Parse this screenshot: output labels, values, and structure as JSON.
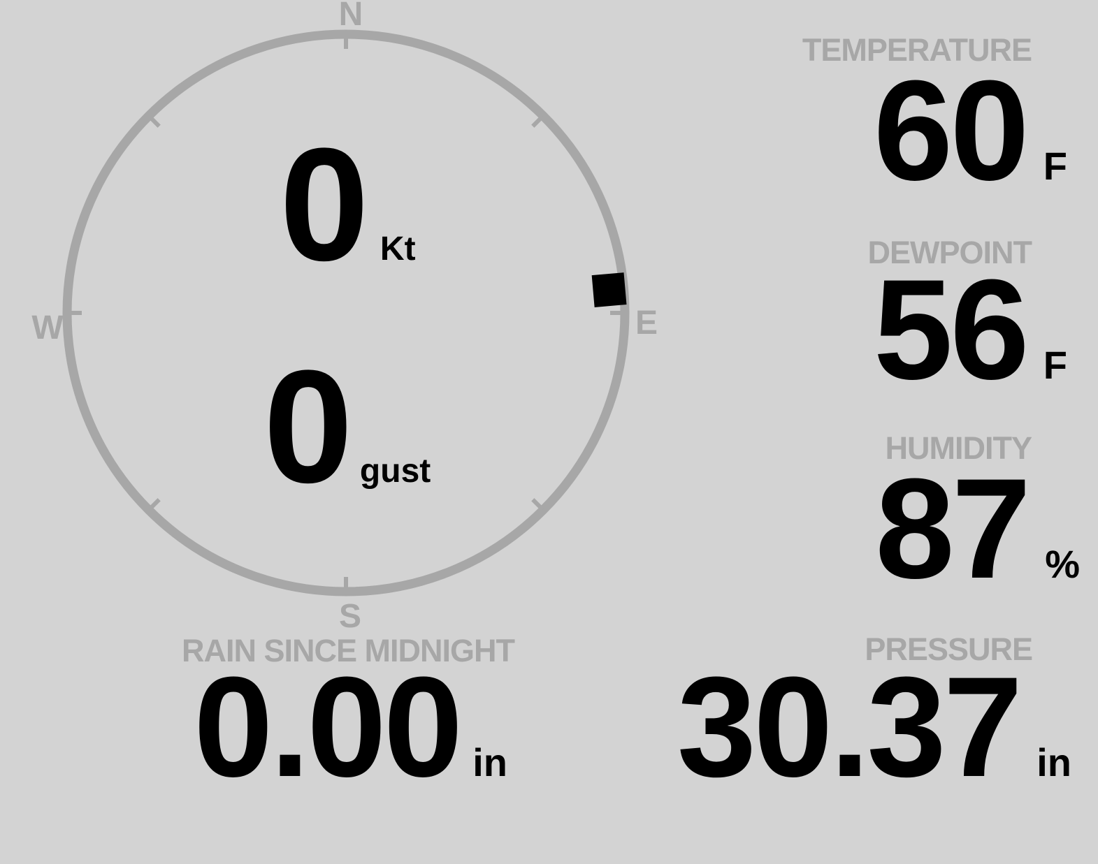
{
  "colors": {
    "background": "#d3d3d3",
    "muted_gray": "#a7a7a7",
    "value_black": "#000000"
  },
  "compass": {
    "north": "N",
    "east": "E",
    "south": "S",
    "west": "W",
    "wind_direction_deg": 85,
    "wind_speed": {
      "value": "0",
      "unit": "Kt"
    },
    "wind_gust": {
      "value": "0",
      "unit": "gust"
    }
  },
  "metrics": {
    "temperature": {
      "label": "TEMPERATURE",
      "value": "60",
      "unit": "F"
    },
    "dewpoint": {
      "label": "DEWPOINT",
      "value": "56",
      "unit": "F"
    },
    "humidity": {
      "label": "HUMIDITY",
      "value": "87",
      "unit": "%"
    },
    "rain": {
      "label": "RAIN SINCE MIDNIGHT",
      "value": "0.00",
      "unit": "in"
    },
    "pressure": {
      "label": "PRESSURE",
      "value": "30.37",
      "unit": "in"
    }
  }
}
